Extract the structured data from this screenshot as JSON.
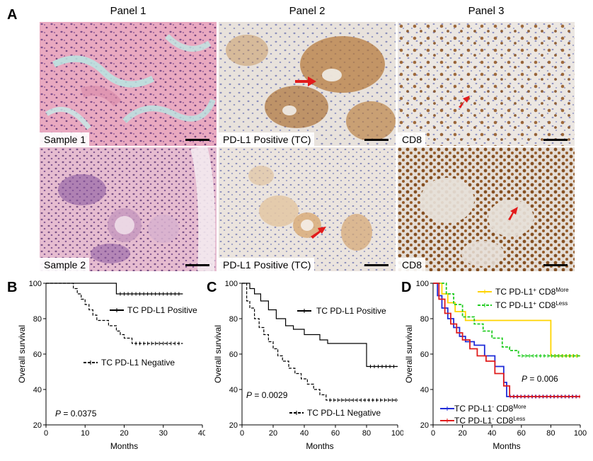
{
  "figure": {
    "letters": {
      "a": "A",
      "b": "B",
      "c": "C",
      "d": "D"
    },
    "panel_titles": [
      "Panel 1",
      "Panel 2",
      "Panel 3"
    ],
    "tile_labels": {
      "r1c1": "Sample 1",
      "r1c2": "PD-L1 Positive (TC)",
      "r1c3": "CD8",
      "r2c1": "Sample 2",
      "r2c2": "PD-L1 Positive (TC)",
      "r2c3": "CD8"
    },
    "colors": {
      "he_bg": "#e9a9c0",
      "he_nuclei": "#5a2f7a",
      "ihc_bg": "#e8e2dc",
      "ihc_brown": "#a8692a",
      "ihc_blue": "#5a63a8",
      "arrow": "#e21b1b"
    }
  },
  "chart_data": [
    {
      "id": "B",
      "type": "line",
      "xlabel": "Months",
      "ylabel": "Overall survival",
      "xlim": [
        0,
        40
      ],
      "ylim": [
        20,
        100
      ],
      "xticks": [
        0,
        10,
        20,
        30,
        40
      ],
      "yticks": [
        20,
        40,
        60,
        80,
        100
      ],
      "p_value_label": "P",
      "p_value": "= 0.0375",
      "series": [
        {
          "name": "TC PD-L1 Positive",
          "style": "solid",
          "color": "#000000",
          "x": [
            0,
            18,
            18,
            35
          ],
          "y": [
            100,
            100,
            94,
            94
          ]
        },
        {
          "name": "TC PD-L1 Negative",
          "style": "dashed",
          "color": "#000000",
          "x": [
            0,
            7,
            7,
            8,
            8,
            9,
            9,
            10,
            10,
            11,
            11,
            12,
            12,
            13,
            13,
            16,
            16,
            18,
            18,
            19,
            19,
            20,
            20,
            22,
            22,
            35
          ],
          "y": [
            100,
            100,
            97,
            97,
            94,
            94,
            91,
            91,
            88,
            88,
            85,
            85,
            82,
            82,
            79,
            79,
            76,
            76,
            73,
            73,
            71,
            71,
            69,
            69,
            66,
            66
          ]
        }
      ]
    },
    {
      "id": "C",
      "type": "line",
      "xlabel": "Months",
      "ylabel": "Overall survival",
      "xlim": [
        0,
        100
      ],
      "ylim": [
        20,
        100
      ],
      "xticks": [
        0,
        20,
        40,
        60,
        80,
        100
      ],
      "yticks": [
        20,
        40,
        60,
        80,
        100
      ],
      "p_value_label": "P",
      "p_value": "= 0.0029",
      "series": [
        {
          "name": "TC PD-L1 Positive",
          "style": "solid",
          "color": "#000000",
          "x": [
            0,
            5,
            5,
            8,
            8,
            12,
            12,
            17,
            17,
            22,
            22,
            28,
            28,
            33,
            33,
            40,
            40,
            50,
            50,
            55,
            55,
            80,
            80,
            100
          ],
          "y": [
            100,
            100,
            97,
            97,
            94,
            94,
            90,
            90,
            85,
            85,
            80,
            80,
            76,
            76,
            74,
            74,
            71,
            71,
            68,
            68,
            66,
            66,
            53,
            53
          ]
        },
        {
          "name": "TC PD-L1 Negative",
          "style": "dashed",
          "color": "#000000",
          "x": [
            0,
            3,
            3,
            5,
            5,
            8,
            8,
            11,
            11,
            14,
            14,
            17,
            17,
            20,
            20,
            23,
            23,
            26,
            26,
            30,
            30,
            34,
            34,
            38,
            38,
            42,
            42,
            46,
            46,
            50,
            50,
            54,
            54,
            100
          ],
          "y": [
            100,
            100,
            90,
            90,
            86,
            86,
            80,
            80,
            75,
            75,
            71,
            71,
            67,
            67,
            63,
            63,
            59,
            59,
            56,
            56,
            52,
            52,
            49,
            49,
            46,
            46,
            43,
            43,
            40,
            40,
            37,
            37,
            34,
            34
          ]
        }
      ]
    },
    {
      "id": "D",
      "type": "line",
      "xlabel": "Months",
      "ylabel": "Overall survival",
      "xlim": [
        0,
        100
      ],
      "ylim": [
        20,
        100
      ],
      "xticks": [
        0,
        20,
        40,
        60,
        80,
        100
      ],
      "yticks": [
        20,
        40,
        60,
        80,
        100
      ],
      "p_value_label": "P",
      "p_value": "= 0.006",
      "series": [
        {
          "name": "TC PD-L1+ CD8More",
          "label_main": "TC PD-L1",
          "label_sign": "+",
          "label_sub": " CD8",
          "label_sup": "More",
          "style": "solid",
          "color": "#ffd400",
          "x": [
            0,
            6,
            6,
            10,
            10,
            15,
            15,
            22,
            22,
            80,
            80,
            100
          ],
          "y": [
            100,
            100,
            94,
            94,
            89,
            89,
            84,
            84,
            79,
            79,
            59,
            59
          ]
        },
        {
          "name": "TC PD-L1+ CD8Less",
          "label_main": "TC PD-L1",
          "label_sign": "+",
          "label_sub": " CD8",
          "label_sup": "Less",
          "style": "dashed",
          "color": "#22cc22",
          "x": [
            0,
            9,
            9,
            14,
            14,
            20,
            20,
            28,
            28,
            34,
            34,
            40,
            40,
            47,
            47,
            52,
            52,
            58,
            58,
            100
          ],
          "y": [
            100,
            100,
            94,
            94,
            88,
            88,
            81,
            81,
            77,
            77,
            73,
            73,
            69,
            69,
            64,
            64,
            62,
            62,
            59,
            59
          ]
        },
        {
          "name": "TC PD-L1- CD8More",
          "label_main": "TC PD-L1",
          "label_sign": "-",
          "label_sub": " CD8",
          "label_sup": "More",
          "style": "solid",
          "color": "#1f2bd8",
          "x": [
            0,
            3,
            3,
            6,
            6,
            10,
            10,
            14,
            14,
            18,
            18,
            22,
            22,
            28,
            28,
            35,
            35,
            42,
            42,
            48,
            48,
            50,
            50,
            100
          ],
          "y": [
            100,
            100,
            93,
            93,
            86,
            86,
            80,
            80,
            75,
            75,
            70,
            70,
            67,
            67,
            65,
            65,
            59,
            59,
            53,
            53,
            44,
            44,
            36,
            36
          ]
        },
        {
          "name": "TC PD-L1- CD8Less",
          "label_main": "TC PD-L1",
          "label_sign": "-",
          "label_sub": " CD8",
          "label_sup": "Less",
          "style": "solid",
          "color": "#e01c1c",
          "x": [
            0,
            4,
            4,
            8,
            8,
            12,
            12,
            16,
            16,
            20,
            20,
            25,
            25,
            30,
            30,
            36,
            36,
            42,
            42,
            48,
            48,
            52,
            52,
            100
          ],
          "y": [
            100,
            100,
            91,
            91,
            83,
            83,
            77,
            77,
            72,
            72,
            68,
            68,
            63,
            63,
            59,
            59,
            56,
            56,
            49,
            49,
            42,
            42,
            36,
            36
          ]
        }
      ]
    }
  ]
}
